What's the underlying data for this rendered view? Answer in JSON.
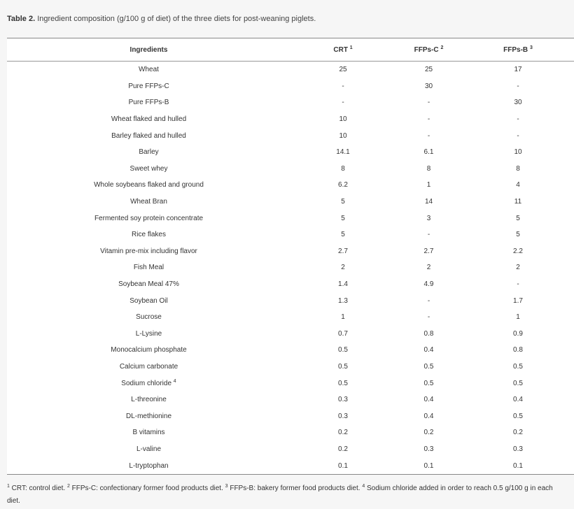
{
  "caption": {
    "label": "Table 2.",
    "text": " Ingredient composition (g/100 g of diet) of the three diets for post-weaning piglets."
  },
  "headers": [
    {
      "text": "Ingredients",
      "sup": ""
    },
    {
      "text": "CRT ",
      "sup": "1"
    },
    {
      "text": "FFPs-C ",
      "sup": "2"
    },
    {
      "text": "FFPs-B ",
      "sup": "3"
    }
  ],
  "rows": [
    {
      "name": "Wheat",
      "sup": "",
      "v": [
        "25",
        "25",
        "17"
      ]
    },
    {
      "name": "Pure FFPs-C",
      "sup": "",
      "v": [
        "-",
        "30",
        "-"
      ]
    },
    {
      "name": "Pure FFPs-B",
      "sup": "",
      "v": [
        "-",
        "-",
        "30"
      ]
    },
    {
      "name": "Wheat flaked and hulled",
      "sup": "",
      "v": [
        "10",
        "-",
        "-"
      ]
    },
    {
      "name": "Barley flaked and hulled",
      "sup": "",
      "v": [
        "10",
        "-",
        "-"
      ]
    },
    {
      "name": "Barley",
      "sup": "",
      "v": [
        "14.1",
        "6.1",
        "10"
      ]
    },
    {
      "name": "Sweet whey",
      "sup": "",
      "v": [
        "8",
        "8",
        "8"
      ]
    },
    {
      "name": "Whole soybeans flaked and ground",
      "sup": "",
      "v": [
        "6.2",
        "1",
        "4"
      ]
    },
    {
      "name": "Wheat Bran",
      "sup": "",
      "v": [
        "5",
        "14",
        "11"
      ]
    },
    {
      "name": "Fermented soy protein concentrate",
      "sup": "",
      "v": [
        "5",
        "3",
        "5"
      ]
    },
    {
      "name": "Rice flakes",
      "sup": "",
      "v": [
        "5",
        "-",
        "5"
      ]
    },
    {
      "name": "Vitamin pre-mix including flavor",
      "sup": "",
      "v": [
        "2.7",
        "2.7",
        "2.2"
      ]
    },
    {
      "name": "Fish Meal",
      "sup": "",
      "v": [
        "2",
        "2",
        "2"
      ]
    },
    {
      "name": "Soybean Meal 47%",
      "sup": "",
      "v": [
        "1.4",
        "4.9",
        "-"
      ]
    },
    {
      "name": "Soybean Oil",
      "sup": "",
      "v": [
        "1.3",
        "-",
        "1.7"
      ]
    },
    {
      "name": "Sucrose",
      "sup": "",
      "v": [
        "1",
        "-",
        "1"
      ]
    },
    {
      "name": "L-Lysine",
      "sup": "",
      "v": [
        "0.7",
        "0.8",
        "0.9"
      ]
    },
    {
      "name": "Monocalcium phosphate",
      "sup": "",
      "v": [
        "0.5",
        "0.4",
        "0.8"
      ]
    },
    {
      "name": "Calcium carbonate",
      "sup": "",
      "v": [
        "0.5",
        "0.5",
        "0.5"
      ]
    },
    {
      "name": "Sodium chloride ",
      "sup": "4",
      "v": [
        "0.5",
        "0.5",
        "0.5"
      ]
    },
    {
      "name": "L-threonine",
      "sup": "",
      "v": [
        "0.3",
        "0.4",
        "0.4"
      ]
    },
    {
      "name": "DL-methionine",
      "sup": "",
      "v": [
        "0.3",
        "0.4",
        "0.5"
      ]
    },
    {
      "name": "B vitamins",
      "sup": "",
      "v": [
        "0.2",
        "0.2",
        "0.2"
      ]
    },
    {
      "name": "L-valine",
      "sup": "",
      "v": [
        "0.2",
        "0.3",
        "0.3"
      ]
    },
    {
      "name": "L-tryptophan",
      "sup": "",
      "v": [
        "0.1",
        "0.1",
        "0.1"
      ]
    }
  ],
  "footnotes": [
    {
      "sup": "1",
      "text": " CRT: control diet. "
    },
    {
      "sup": "2",
      "text": " FFPs-C: confectionary former food products diet. "
    },
    {
      "sup": "3",
      "text": " FFPs-B: bakery former food products diet. "
    },
    {
      "sup": "4",
      "text": " Sodium chloride added in order to reach 0.5 g/100 g in each diet."
    }
  ]
}
